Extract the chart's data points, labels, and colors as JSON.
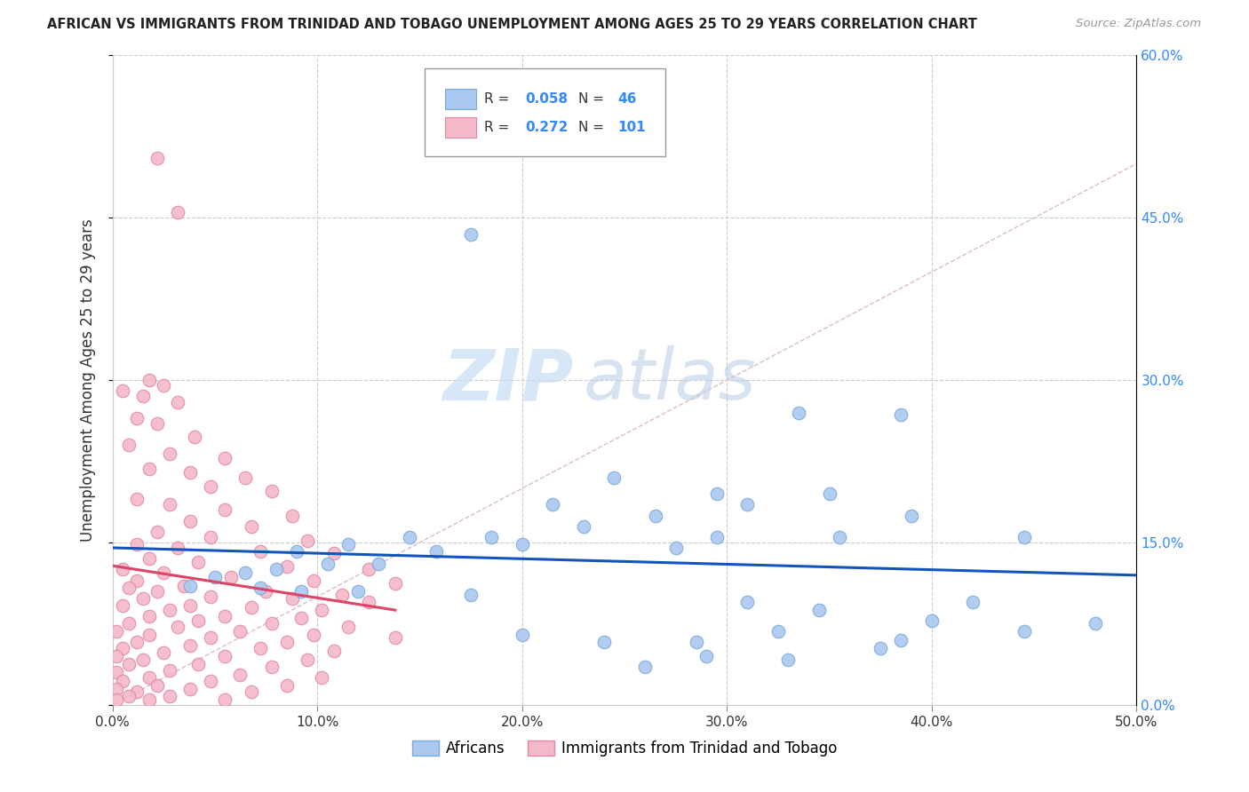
{
  "title": "AFRICAN VS IMMIGRANTS FROM TRINIDAD AND TOBAGO UNEMPLOYMENT AMONG AGES 25 TO 29 YEARS CORRELATION CHART",
  "source": "Source: ZipAtlas.com",
  "ylabel": "Unemployment Among Ages 25 to 29 years",
  "xlim": [
    0.0,
    0.5
  ],
  "ylim": [
    0.0,
    0.6
  ],
  "xticks": [
    0.0,
    0.1,
    0.2,
    0.3,
    0.4,
    0.5
  ],
  "yticks": [
    0.0,
    0.15,
    0.3,
    0.45,
    0.6
  ],
  "xtick_labels": [
    "0.0%",
    "10.0%",
    "20.0%",
    "30.0%",
    "40.0%",
    "50.0%"
  ],
  "ytick_labels": [
    "0.0%",
    "15.0%",
    "30.0%",
    "45.0%",
    "60.0%"
  ],
  "background_color": "#ffffff",
  "grid_color": "#cccccc",
  "watermark_zip": "ZIP",
  "watermark_atlas": "atlas",
  "africans_color": "#aac8f0",
  "tt_color": "#f5b8c8",
  "africans_edge": "#7aaad8",
  "tt_edge": "#e088a8",
  "trend_blue": "#1155bb",
  "trend_pink": "#dd4466",
  "diag_color": "#ddbbcc",
  "legend_label1": "Africans",
  "legend_label2": "Immigrants from Trinidad and Tobago",
  "r_color": "#3388ff",
  "text_color": "#333333",
  "source_color": "#999999",
  "legend_box_color": "#eeeeee",
  "legend_border_color": "#aaaaaa"
}
